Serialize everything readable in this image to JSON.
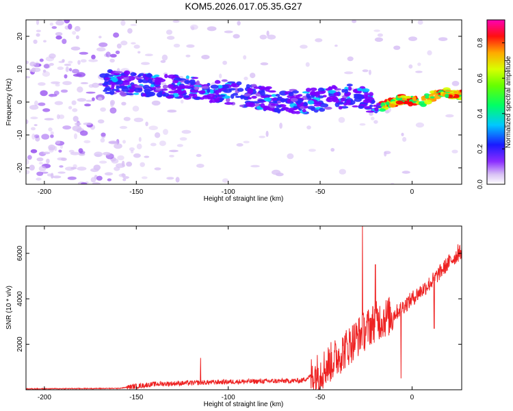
{
  "title": "KOM5.2026.017.05.35.G27",
  "colors": {
    "snr_line": "#ee2222",
    "spectrogram_colormap": [
      "#ffffff",
      "#d9c2f5",
      "#9a55f0",
      "#7b00ff",
      "#2a2aff",
      "#00c8ff",
      "#00ff66",
      "#d8ff00",
      "#ffaa00",
      "#ff0000",
      "#ff00b4"
    ]
  },
  "chart_data": [
    {
      "type": "heatmap",
      "title": "",
      "xlabel": "Height of straight line (km)",
      "ylabel": "Frequency (Hz)",
      "xlim": [
        -210,
        27
      ],
      "ylim": [
        -25,
        25
      ],
      "xticks": [
        "-200",
        "-150",
        "-100",
        "-50",
        "0"
      ],
      "yticks": [
        "-20",
        "-10",
        "0",
        "10",
        "20"
      ],
      "colorbar": {
        "label": "Normalized spectral amplitude",
        "range": [
          0.0,
          0.93
        ],
        "ticks": [
          "0.0",
          "0.2",
          "0.4",
          "0.6",
          "0.8"
        ]
      },
      "ridge": {
        "description_free_points": [
          {
            "x": -165,
            "freq": 6
          },
          {
            "x": -140,
            "freq": 5
          },
          {
            "x": -120,
            "freq": 4
          },
          {
            "x": -100,
            "freq": 3
          },
          {
            "x": -80,
            "freq": 1
          },
          {
            "x": -60,
            "freq": 0
          },
          {
            "x": -45,
            "freq": 1
          },
          {
            "x": -30,
            "freq": 2
          },
          {
            "x": -20,
            "freq": -2
          },
          {
            "x": -15,
            "freq": -1
          },
          {
            "x": -5,
            "freq": 1
          },
          {
            "x": 5,
            "freq": 0
          },
          {
            "x": 15,
            "freq": 3
          },
          {
            "x": 27,
            "freq": 2
          }
        ]
      }
    },
    {
      "type": "line",
      "title": "",
      "xlabel": "Height of straight line (km)",
      "ylabel": "SNR (10 * v/v)",
      "xlim": [
        -210,
        27
      ],
      "ylim": [
        0,
        7200
      ],
      "xticks": [
        "-200",
        "-150",
        "-100",
        "-50",
        "0"
      ],
      "yticks": [
        "2000",
        "4000",
        "6000"
      ],
      "series": [
        {
          "trend": [
            {
              "x": -210,
              "y": 40
            },
            {
              "x": -160,
              "y": 60
            },
            {
              "x": -140,
              "y": 250
            },
            {
              "x": -100,
              "y": 350
            },
            {
              "x": -60,
              "y": 400
            },
            {
              "x": -50,
              "y": 800
            },
            {
              "x": -40,
              "y": 1500
            },
            {
              "x": -30,
              "y": 2300
            },
            {
              "x": -20,
              "y": 3000
            },
            {
              "x": -10,
              "y": 3300
            },
            {
              "x": 0,
              "y": 4000
            },
            {
              "x": 10,
              "y": 4700
            },
            {
              "x": 20,
              "y": 5600
            },
            {
              "x": 27,
              "y": 6100
            }
          ],
          "peaks": [
            {
              "x": -115,
              "y": 1400
            },
            {
              "x": -27,
              "y": 7200
            },
            {
              "x": -20,
              "y": 5500
            },
            {
              "x": -6,
              "y": 500
            },
            {
              "x": 12,
              "y": 2700
            },
            {
              "x": 25,
              "y": 6400
            }
          ]
        }
      ]
    }
  ]
}
